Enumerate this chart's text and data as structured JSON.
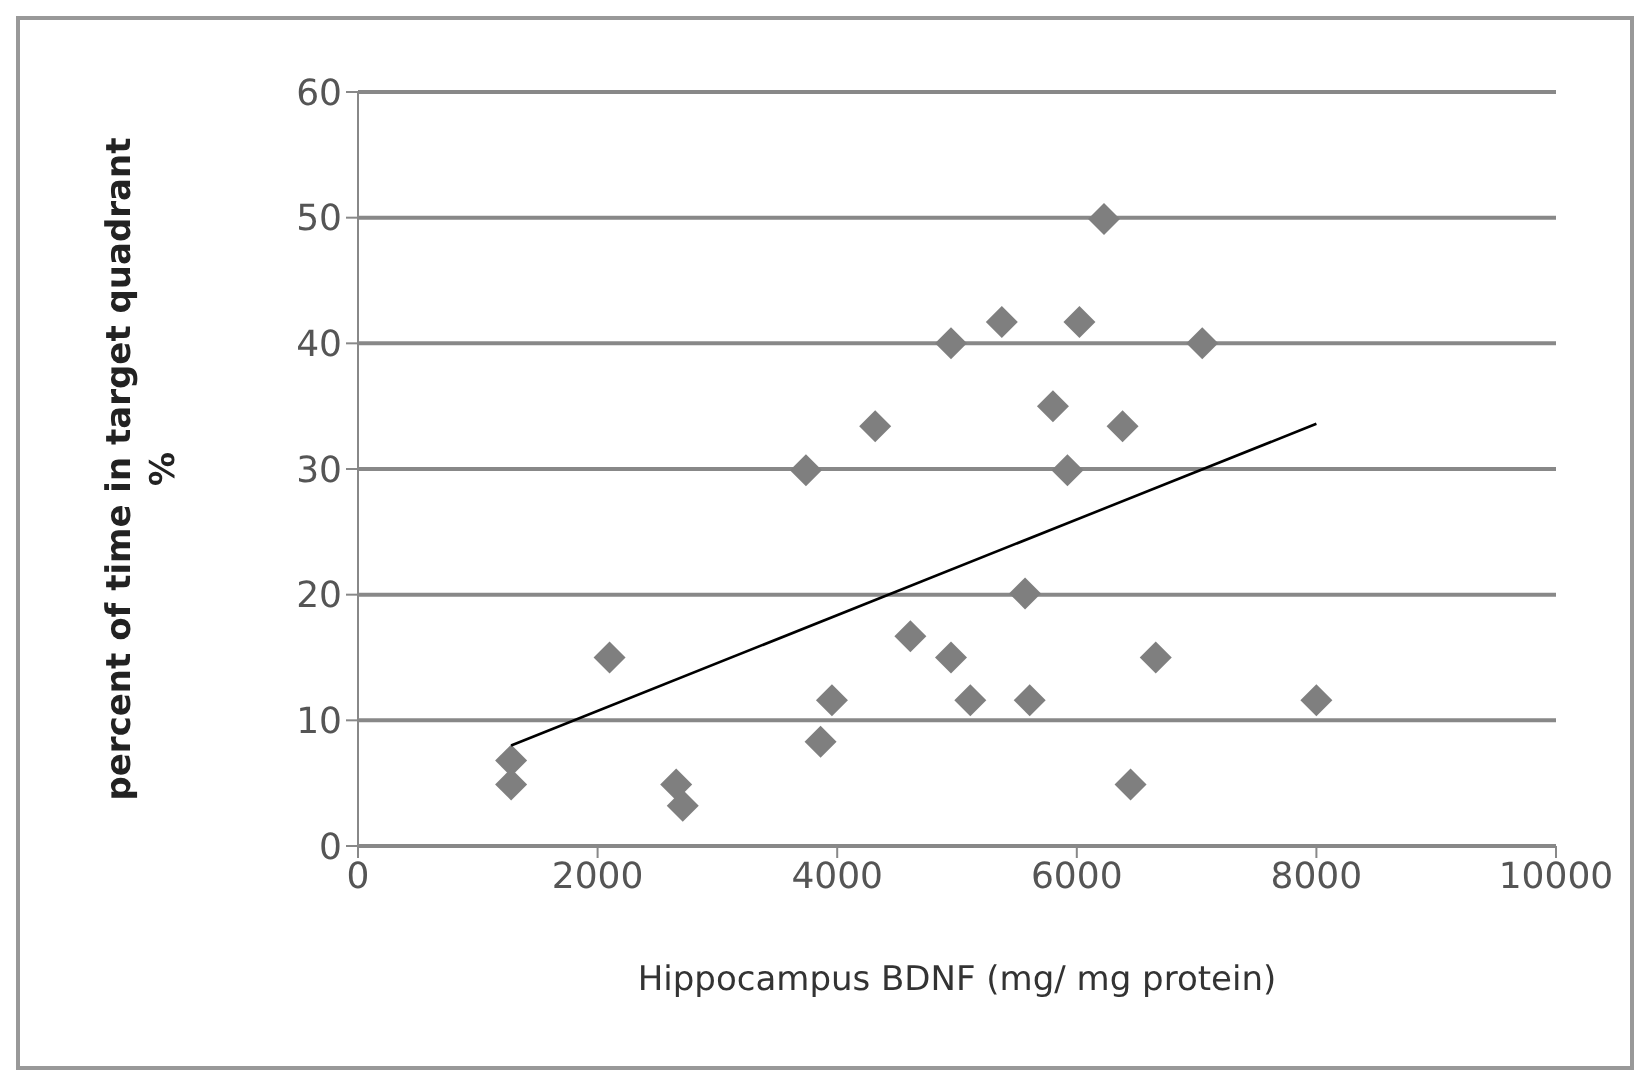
{
  "chart_data": {
    "type": "scatter",
    "xlabel": "Hippocampus BDNF (mg/ mg protein)",
    "ylabel": "percent  of time in target quadrant\n%",
    "xlim": [
      0,
      10000
    ],
    "xticks": [
      0,
      2000,
      4000,
      6000,
      8000,
      10000
    ],
    "ylim": [
      0,
      60
    ],
    "yticks": [
      0,
      10,
      20,
      30,
      40,
      50,
      60
    ],
    "grid": "y",
    "marker": "diamond",
    "series": [
      {
        "color": "#7f7f7f",
        "x": [
          1278,
          1278,
          2100,
          2656,
          2711,
          3739,
          3861,
          3956,
          4317,
          4611,
          4950,
          4950,
          5111,
          5374,
          6022,
          6227,
          7047,
          5801,
          6382,
          5922,
          5568,
          5607,
          6659,
          8000,
          6449
        ],
        "values": [
          6.8,
          4.9,
          15.0,
          4.9,
          3.2,
          29.9,
          8.3,
          11.6,
          33.4,
          16.7,
          40.0,
          15.0,
          11.6,
          41.7,
          41.7,
          49.9,
          40.0,
          35.0,
          33.4,
          29.9,
          20.1,
          11.6,
          15.0,
          11.6,
          4.9
        ]
      },
      {
        "type": "line",
        "color": "#000000",
        "marker": "none",
        "x": [
          1278,
          8000
        ],
        "values": [
          8.0,
          33.6
        ]
      }
    ]
  }
}
